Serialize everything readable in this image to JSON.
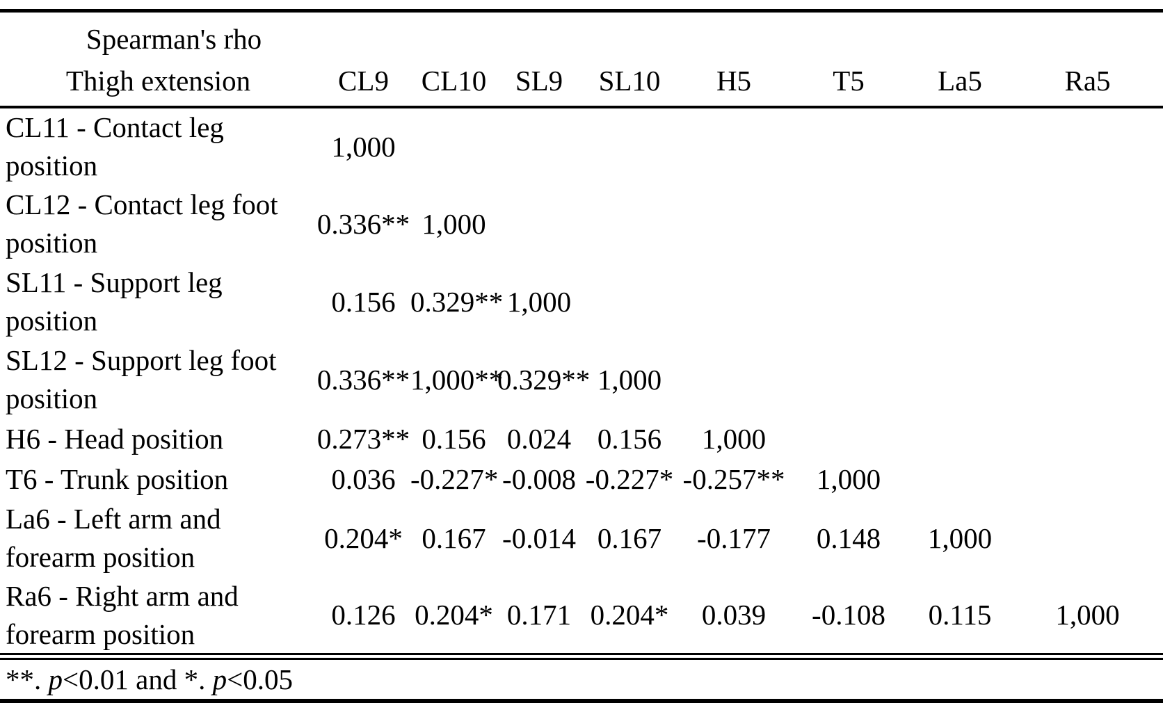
{
  "colors": {
    "text": "#000000",
    "background": "#ffffff"
  },
  "table": {
    "header": {
      "title_line1": "Spearman's rho",
      "title_line2": "Thigh extension",
      "columns": [
        "CL9",
        "CL10",
        "SL9",
        "SL10",
        "H5",
        "T5",
        "La5",
        "Ra5"
      ]
    },
    "rows": [
      {
        "label": "CL11 - Contact leg position",
        "values": [
          "1,000",
          "",
          "",
          "",
          "",
          "",
          "",
          ""
        ]
      },
      {
        "label": "CL12 - Contact leg foot position",
        "values": [
          "0.336**",
          "1,000",
          "",
          "",
          "",
          "",
          "",
          ""
        ]
      },
      {
        "label": "SL11 - Support leg position",
        "values": [
          "0.156",
          "0.329**",
          "1,000",
          "",
          "",
          "",
          "",
          ""
        ]
      },
      {
        "label": "SL12 - Support leg foot position",
        "values": [
          "0.336**",
          "1,000**",
          "0.329**",
          "1,000",
          "",
          "",
          "",
          ""
        ]
      },
      {
        "label": "H6 - Head position",
        "values": [
          "0.273**",
          "0.156",
          "0.024",
          "0.156",
          "1,000",
          "",
          "",
          ""
        ]
      },
      {
        "label": "T6 - Trunk position",
        "values": [
          "0.036",
          "-0.227*",
          "-0.008",
          "-0.227*",
          "-0.257**",
          "1,000",
          "",
          ""
        ]
      },
      {
        "label": "La6 - Left arm and forearm position",
        "values": [
          "0.204*",
          "0.167",
          "-0.014",
          "0.167",
          "-0.177",
          "0.148",
          "1,000",
          ""
        ]
      },
      {
        "label": "Ra6 - Right arm and forearm position",
        "values": [
          "0.126",
          "0.204*",
          "0.171",
          "0.204*",
          "0.039",
          "-0.108",
          "0.115",
          "1,000"
        ]
      }
    ],
    "footnote": {
      "part1": "**. ",
      "p1": "p",
      "part2": "<0.01 and *. ",
      "p2": "p",
      "part3": "<0.05"
    }
  }
}
